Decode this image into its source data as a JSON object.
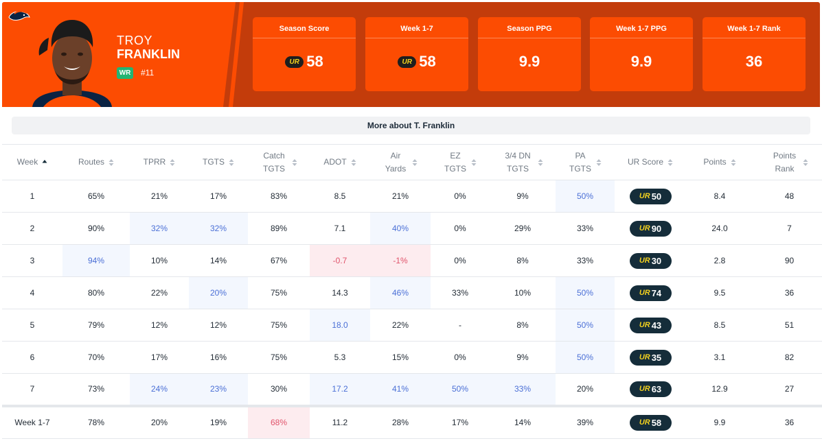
{
  "player": {
    "first_name": "TROY",
    "last_name": "FRANKLIN",
    "position": "WR",
    "jersey": "#11",
    "team_logo_icon": "broncos-logo-icon",
    "more_label": "More about T. Franklin"
  },
  "colors": {
    "brand_orange": "#fc4c02",
    "brand_dark": "#c33c0b",
    "pill_bg": "#152d3a",
    "ur_yellow": "#f4d21f",
    "highlight_blue": "#f3f7fe",
    "highlight_red": "#fdecef"
  },
  "stats": [
    {
      "label": "Season Score",
      "value": "58",
      "ur": true
    },
    {
      "label": "Week 1-7",
      "value": "58",
      "ur": true
    },
    {
      "label": "Season PPG",
      "value": "9.9",
      "ur": false
    },
    {
      "label": "Week 1-7 PPG",
      "value": "9.9",
      "ur": false
    },
    {
      "label": "Week 1-7 Rank",
      "value": "36",
      "ur": false
    }
  ],
  "table": {
    "columns": [
      {
        "label": "Week",
        "sort": "asc"
      },
      {
        "label": "Routes",
        "sort": "none"
      },
      {
        "label": "TPRR",
        "sort": "none"
      },
      {
        "label": "TGTS",
        "sort": "none"
      },
      {
        "label": "Catch TGTS",
        "sort": "none"
      },
      {
        "label": "ADOT",
        "sort": "none"
      },
      {
        "label": "Air Yards",
        "sort": "none"
      },
      {
        "label": "EZ TGTS",
        "sort": "none"
      },
      {
        "label": "3/4 DN TGTS",
        "sort": "none"
      },
      {
        "label": "PA TGTS",
        "sort": "none"
      },
      {
        "label": "UR Score",
        "sort": "none"
      },
      {
        "label": "Points",
        "sort": "none"
      },
      {
        "label": "Points Rank",
        "sort": "none"
      }
    ],
    "ur_mark": "UR",
    "rows": [
      {
        "cells": [
          "1",
          "65%",
          "21%",
          "17%",
          "83%",
          "8.5",
          "21%",
          "0%",
          "9%",
          "50%",
          "50",
          "8.4",
          "48"
        ],
        "hl": [
          "",
          "",
          "",
          "",
          "",
          "",
          "",
          "",
          "",
          "blue",
          "",
          "",
          ""
        ]
      },
      {
        "cells": [
          "2",
          "90%",
          "32%",
          "32%",
          "89%",
          "7.1",
          "40%",
          "0%",
          "29%",
          "33%",
          "90",
          "24.0",
          "7"
        ],
        "hl": [
          "",
          "",
          "blue",
          "blue",
          "",
          "",
          "blue",
          "",
          "",
          "",
          "",
          "",
          ""
        ]
      },
      {
        "cells": [
          "3",
          "94%",
          "10%",
          "14%",
          "67%",
          "-0.7",
          "-1%",
          "0%",
          "8%",
          "33%",
          "30",
          "2.8",
          "90"
        ],
        "hl": [
          "",
          "blue",
          "",
          "",
          "",
          "red",
          "red",
          "",
          "",
          "",
          "",
          "",
          ""
        ]
      },
      {
        "cells": [
          "4",
          "80%",
          "22%",
          "20%",
          "75%",
          "14.3",
          "46%",
          "33%",
          "10%",
          "50%",
          "74",
          "9.5",
          "36"
        ],
        "hl": [
          "",
          "",
          "",
          "blue",
          "",
          "",
          "blue",
          "",
          "",
          "blue",
          "",
          "",
          ""
        ]
      },
      {
        "cells": [
          "5",
          "79%",
          "12%",
          "12%",
          "75%",
          "18.0",
          "22%",
          "-",
          "8%",
          "50%",
          "43",
          "8.5",
          "51"
        ],
        "hl": [
          "",
          "",
          "",
          "",
          "",
          "blue",
          "",
          "",
          "",
          "blue",
          "",
          "",
          ""
        ]
      },
      {
        "cells": [
          "6",
          "70%",
          "17%",
          "16%",
          "75%",
          "5.3",
          "15%",
          "0%",
          "9%",
          "50%",
          "35",
          "3.1",
          "82"
        ],
        "hl": [
          "",
          "",
          "",
          "",
          "",
          "",
          "",
          "",
          "",
          "blue",
          "",
          "",
          ""
        ]
      },
      {
        "cells": [
          "7",
          "73%",
          "24%",
          "23%",
          "30%",
          "17.2",
          "41%",
          "50%",
          "33%",
          "20%",
          "63",
          "12.9",
          "27"
        ],
        "hl": [
          "",
          "",
          "blue",
          "blue",
          "",
          "blue",
          "blue",
          "blue",
          "blue",
          "",
          "",
          "",
          ""
        ]
      }
    ],
    "total": {
      "cells": [
        "Week 1-7",
        "78%",
        "20%",
        "19%",
        "68%",
        "11.2",
        "28%",
        "17%",
        "14%",
        "39%",
        "58",
        "9.9",
        "36"
      ],
      "hl": [
        "",
        "",
        "",
        "",
        "red",
        "",
        "",
        "",
        "",
        "",
        "",
        "",
        ""
      ]
    }
  }
}
